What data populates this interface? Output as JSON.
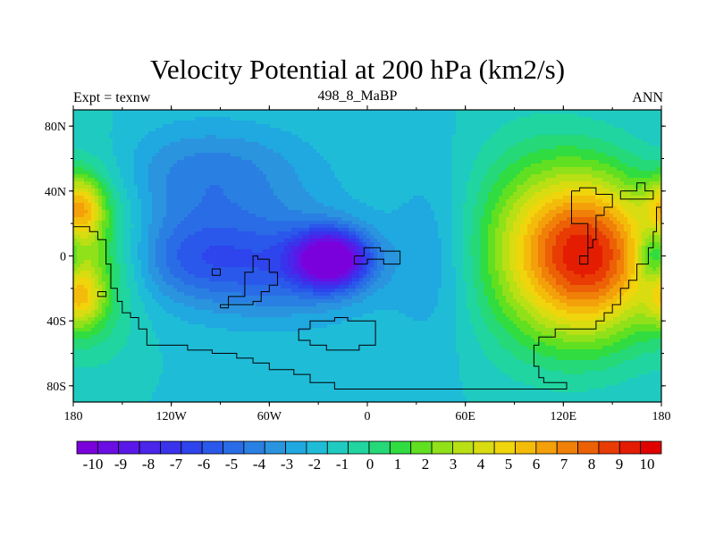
{
  "chart_data": {
    "type": "heatmap",
    "title": "Velocity Potential at 200 hPa (km2/s)",
    "subtitle_left": "Expt = texnw",
    "subtitle_center": "498_8_MaBP",
    "subtitle_right": "ANN",
    "x_ticks": [
      "180",
      "120W",
      "60W",
      "0",
      "60E",
      "120E",
      "180"
    ],
    "x_tick_values": [
      -180,
      -120,
      -60,
      0,
      60,
      120,
      180
    ],
    "y_ticks": [
      "80N",
      "40N",
      "0",
      "40S",
      "80S"
    ],
    "y_tick_values": [
      80,
      40,
      0,
      -40,
      -80
    ],
    "xlim": [
      -180,
      180
    ],
    "ylim": [
      -90,
      90
    ],
    "colorbar_labels": [
      "-10",
      "-9",
      "-8",
      "-7",
      "-6",
      "-5",
      "-4",
      "-3",
      "-2",
      "-1",
      "0",
      "1",
      "2",
      "3",
      "4",
      "5",
      "6",
      "7",
      "8",
      "9",
      "10"
    ],
    "colorbar_levels": [
      -10,
      -9,
      -8,
      -7,
      -6,
      -5,
      -4,
      -3,
      -2,
      -1,
      0,
      1,
      2,
      3,
      4,
      5,
      6,
      7,
      8,
      9,
      10
    ],
    "colormap": [
      "#7a00dc",
      "#6a0ee3",
      "#5a18e8",
      "#4a25ea",
      "#3a33ec",
      "#2e44ec",
      "#2a58ea",
      "#2a6ce6",
      "#2a80e2",
      "#2a94df",
      "#20a8e0",
      "#1fbcd8",
      "#1fcbc0",
      "#20d5a0",
      "#25d878",
      "#30dc40",
      "#60e020",
      "#90e01a",
      "#b8e014",
      "#d8dc10",
      "#f0d40c",
      "#f4bc0a",
      "#f4a00a",
      "#f08008",
      "#ec6006",
      "#e83c04",
      "#e41c02",
      "#e00000"
    ],
    "field_description": "Low (negative) values centered near 20W 0; high (positive) values centered near 140E 0"
  }
}
